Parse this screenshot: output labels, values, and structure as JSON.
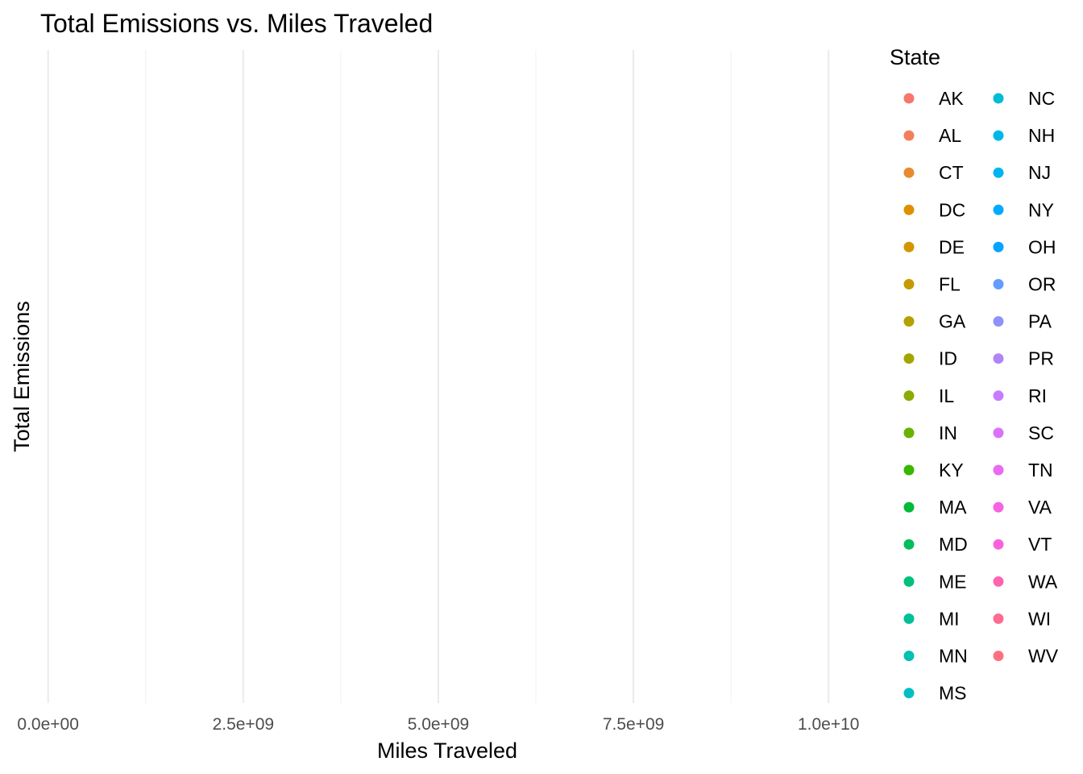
{
  "chart_data": {
    "type": "scatter",
    "title": "Total Emissions vs. Miles Traveled",
    "xlabel": "Miles Traveled",
    "ylabel": "Total Emissions",
    "xlim": [
      -100000000,
      10700000000
    ],
    "x_ticks": [
      {
        "value": 0,
        "label": "0.0e+00"
      },
      {
        "value": 2500000000,
        "label": "2.5e+09"
      },
      {
        "value": 5000000000,
        "label": "5.0e+09"
      },
      {
        "value": 7500000000,
        "label": "7.5e+09"
      },
      {
        "value": 10000000000,
        "label": "1.0e+10"
      }
    ],
    "x_minor_ticks": [
      1250000000,
      3750000000,
      6250000000,
      8750000000
    ],
    "grid": true,
    "legend": {
      "title": "State",
      "placement": "right",
      "columns": 2,
      "entries": [
        {
          "name": "AK",
          "color": "#F8766D"
        },
        {
          "name": "AL",
          "color": "#F1805A"
        },
        {
          "name": "CT",
          "color": "#E98A2E"
        },
        {
          "name": "DC",
          "color": "#DF9000"
        },
        {
          "name": "DE",
          "color": "#D29600"
        },
        {
          "name": "FL",
          "color": "#C49A00"
        },
        {
          "name": "GA",
          "color": "#B4A000"
        },
        {
          "name": "ID",
          "color": "#A3A500"
        },
        {
          "name": "IL",
          "color": "#8CAB00"
        },
        {
          "name": "IN",
          "color": "#6BB100"
        },
        {
          "name": "KY",
          "color": "#39B600"
        },
        {
          "name": "MA",
          "color": "#00BA38"
        },
        {
          "name": "MD",
          "color": "#00BD5C"
        },
        {
          "name": "ME",
          "color": "#00C07B"
        },
        {
          "name": "MI",
          "color": "#00C097"
        },
        {
          "name": "MN",
          "color": "#00C0AF"
        },
        {
          "name": "MS",
          "color": "#00BFC4"
        },
        {
          "name": "NC",
          "color": "#00BCD6"
        },
        {
          "name": "NH",
          "color": "#00B8E5"
        },
        {
          "name": "NJ",
          "color": "#00B4F0"
        },
        {
          "name": "NY",
          "color": "#00ABFD"
        },
        {
          "name": "OH",
          "color": "#06A4FF"
        },
        {
          "name": "OR",
          "color": "#619CFF"
        },
        {
          "name": "PA",
          "color": "#8F91FF"
        },
        {
          "name": "PR",
          "color": "#B085F5"
        },
        {
          "name": "RI",
          "color": "#C77CFF"
        },
        {
          "name": "SC",
          "color": "#DB72FB"
        },
        {
          "name": "TN",
          "color": "#E76BF3"
        },
        {
          "name": "VA",
          "color": "#F564E3"
        },
        {
          "name": "VT",
          "color": "#FA62DB"
        },
        {
          "name": "WA",
          "color": "#FF64B0"
        },
        {
          "name": "WI",
          "color": "#FF6C91"
        },
        {
          "name": "WV",
          "color": "#FC717F"
        }
      ]
    },
    "series": []
  }
}
